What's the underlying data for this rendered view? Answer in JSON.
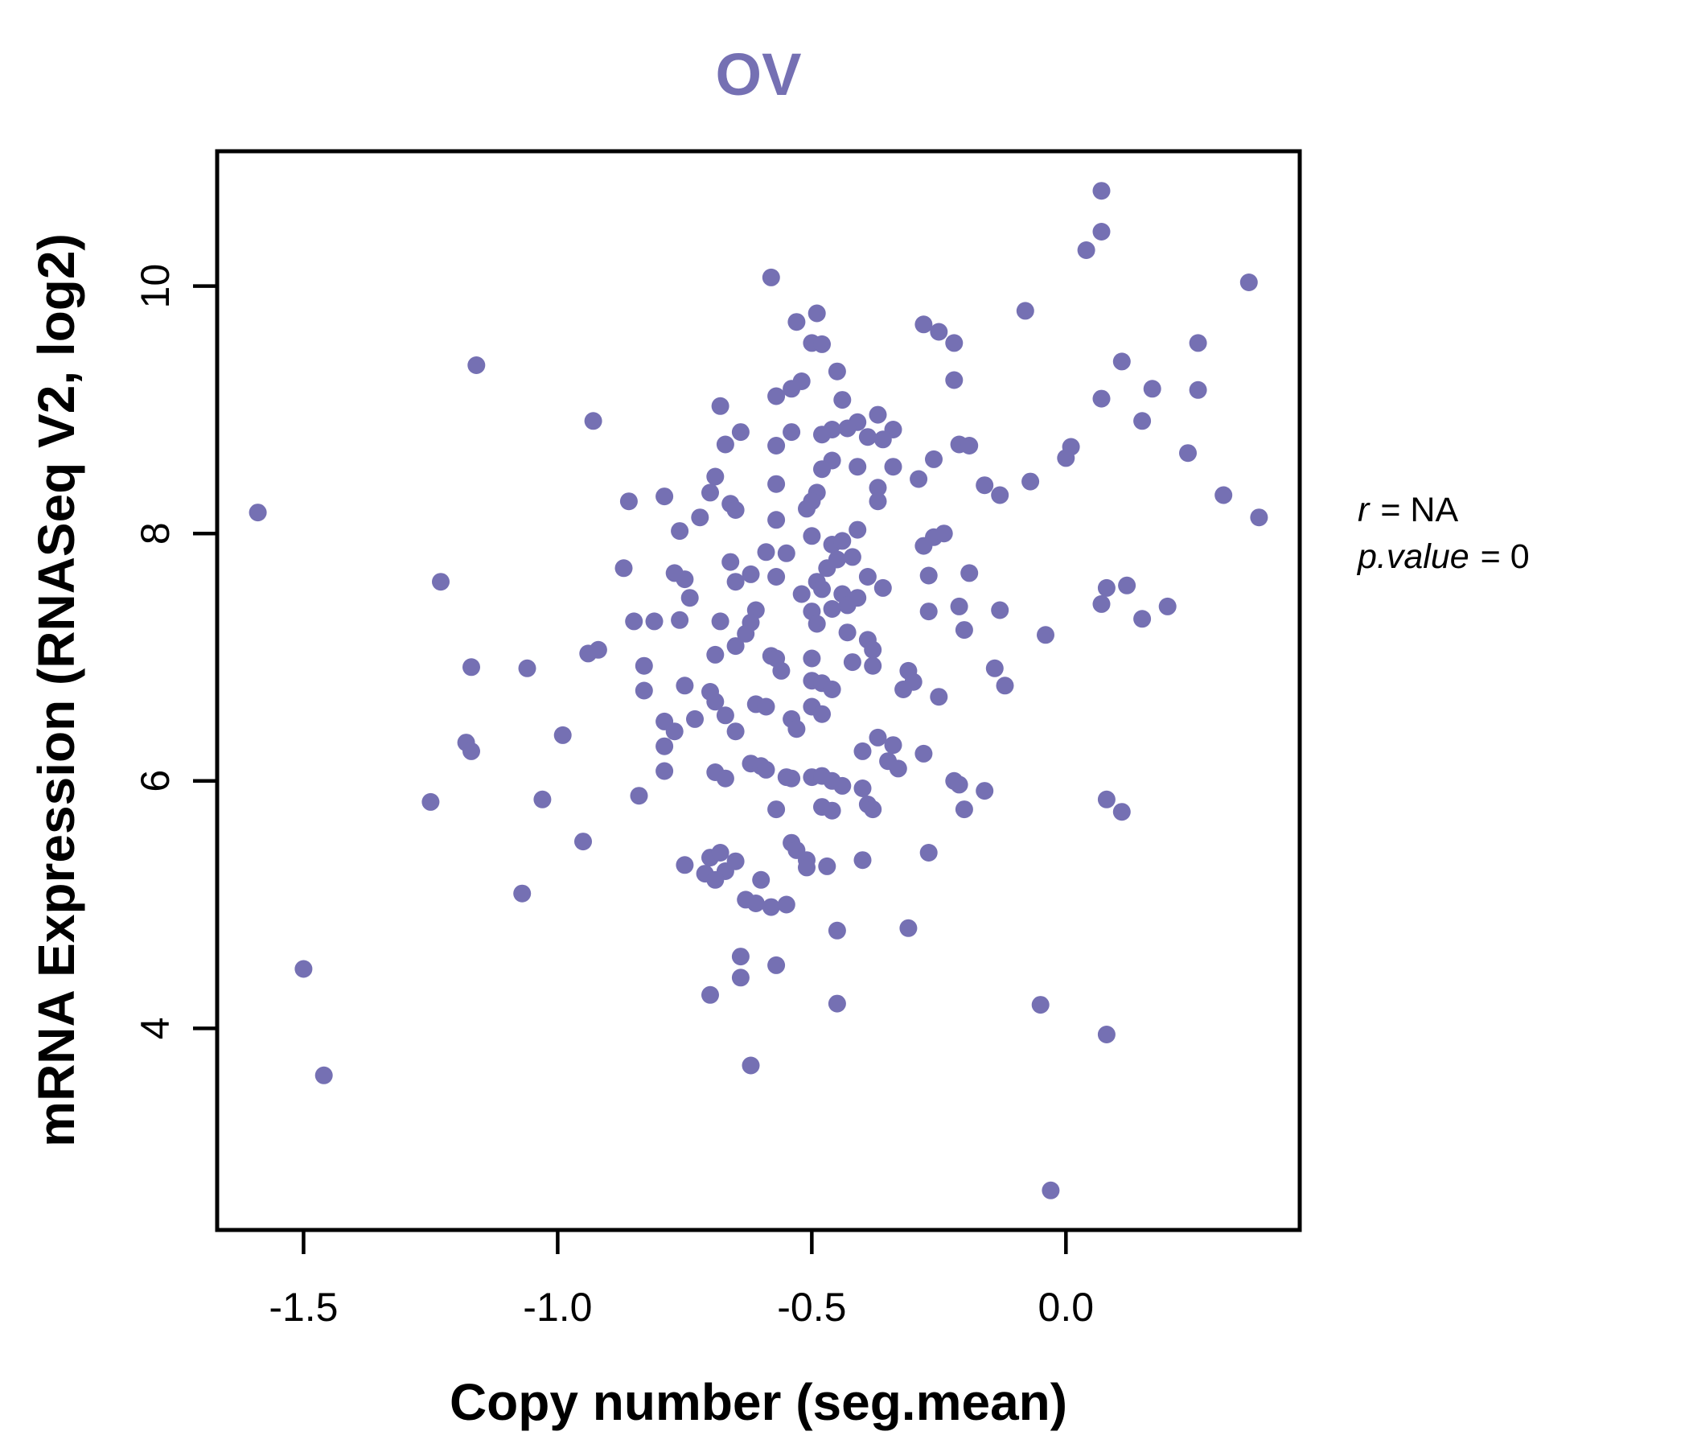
{
  "page": {
    "background": "#ffffff"
  },
  "chart_data": {
    "type": "scatter",
    "title": "OV",
    "title_color": "#7570b3",
    "point_color": "#7570b3",
    "point_radius": 11,
    "xlabel": "Copy number (seg.mean)",
    "ylabel": "mRNA Expression (RNASeq V2, log2)",
    "xlim": [
      -1.67,
      0.46
    ],
    "ylim": [
      2.37,
      11.09
    ],
    "x_ticks": [
      -1.5,
      -1.0,
      -0.5,
      0.0
    ],
    "y_ticks": [
      4,
      6,
      8,
      10
    ],
    "grid": false,
    "legend_position": "none",
    "annotation_lines": [
      {
        "italic": "r",
        "roman": "= NA"
      },
      {
        "italic": "p.value",
        "roman": "= 0"
      }
    ],
    "points": [
      [
        -1.16,
        9.36
      ],
      [
        -1.59,
        8.17
      ],
      [
        -0.58,
        10.07
      ],
      [
        -0.53,
        9.71
      ],
      [
        -0.49,
        9.78
      ],
      [
        -0.5,
        9.54
      ],
      [
        -0.48,
        9.53
      ],
      [
        -0.28,
        9.69
      ],
      [
        -0.25,
        9.63
      ],
      [
        -0.45,
        9.31
      ],
      [
        -0.52,
        9.23
      ],
      [
        -0.54,
        9.17
      ],
      [
        -0.57,
        9.11
      ],
      [
        -0.44,
        9.08
      ],
      [
        -0.68,
        9.03
      ],
      [
        -0.93,
        8.91
      ],
      [
        -0.37,
        8.96
      ],
      [
        -0.34,
        8.84
      ],
      [
        -0.41,
        8.9
      ],
      [
        -0.43,
        8.85
      ],
      [
        -0.46,
        8.84
      ],
      [
        -0.48,
        8.8
      ],
      [
        -0.39,
        8.78
      ],
      [
        -0.36,
        8.76
      ],
      [
        -0.64,
        8.82
      ],
      [
        -0.54,
        8.82
      ],
      [
        -0.67,
        8.72
      ],
      [
        -0.57,
        8.71
      ],
      [
        -0.46,
        8.59
      ],
      [
        -0.48,
        8.52
      ],
      [
        -0.41,
        8.54
      ],
      [
        -0.34,
        8.54
      ],
      [
        -0.26,
        8.6
      ],
      [
        -0.69,
        8.46
      ],
      [
        -0.7,
        8.33
      ],
      [
        -0.57,
        8.4
      ],
      [
        -0.49,
        8.33
      ],
      [
        -0.5,
        8.26
      ],
      [
        -0.37,
        8.37
      ],
      [
        -0.37,
        8.26
      ],
      [
        -0.29,
        8.44
      ],
      [
        -0.86,
        8.26
      ],
      [
        -0.79,
        8.3
      ],
      [
        -0.66,
        8.24
      ],
      [
        -0.65,
        8.19
      ],
      [
        -0.72,
        8.13
      ],
      [
        -0.57,
        8.11
      ],
      [
        -0.51,
        8.2
      ],
      [
        0.07,
        10.77
      ],
      [
        0.07,
        10.44
      ],
      [
        0.04,
        10.29
      ],
      [
        0.36,
        10.03
      ],
      [
        -0.08,
        9.8
      ],
      [
        -0.22,
        9.54
      ],
      [
        -0.22,
        9.24
      ],
      [
        0.26,
        9.54
      ],
      [
        0.11,
        9.39
      ],
      [
        0.17,
        9.17
      ],
      [
        0.26,
        9.16
      ],
      [
        0.07,
        9.09
      ],
      [
        0.15,
        8.91
      ],
      [
        -0.21,
        8.72
      ],
      [
        -0.19,
        8.71
      ],
      [
        0.01,
        8.7
      ],
      [
        0.0,
        8.61
      ],
      [
        0.24,
        8.65
      ],
      [
        -0.16,
        8.39
      ],
      [
        -0.13,
        8.31
      ],
      [
        -0.07,
        8.42
      ],
      [
        0.31,
        8.31
      ],
      [
        0.38,
        8.13
      ],
      [
        -1.23,
        7.61
      ],
      [
        -1.17,
        6.92
      ],
      [
        -1.06,
        6.91
      ],
      [
        -1.18,
        6.31
      ],
      [
        -1.17,
        6.24
      ],
      [
        -0.99,
        6.37
      ],
      [
        -1.25,
        5.83
      ],
      [
        -1.03,
        5.85
      ],
      [
        -0.95,
        5.51
      ],
      [
        -0.76,
        8.02
      ],
      [
        -0.59,
        7.85
      ],
      [
        -0.55,
        7.84
      ],
      [
        -0.5,
        7.98
      ],
      [
        -0.46,
        7.91
      ],
      [
        -0.44,
        7.94
      ],
      [
        -0.42,
        7.81
      ],
      [
        -0.45,
        7.79
      ],
      [
        -0.41,
        8.03
      ],
      [
        -0.28,
        7.9
      ],
      [
        -0.26,
        7.97
      ],
      [
        -0.87,
        7.72
      ],
      [
        -0.66,
        7.77
      ],
      [
        -0.65,
        7.61
      ],
      [
        -0.62,
        7.67
      ],
      [
        -0.57,
        7.65
      ],
      [
        -0.77,
        7.68
      ],
      [
        -0.75,
        7.63
      ],
      [
        -0.49,
        7.61
      ],
      [
        -0.47,
        7.72
      ],
      [
        -0.39,
        7.65
      ],
      [
        -0.36,
        7.56
      ],
      [
        -0.27,
        7.66
      ],
      [
        -0.74,
        7.48
      ],
      [
        -0.52,
        7.51
      ],
      [
        -0.48,
        7.55
      ],
      [
        -0.44,
        7.51
      ],
      [
        -0.41,
        7.48
      ],
      [
        -0.43,
        7.42
      ],
      [
        -0.46,
        7.39
      ],
      [
        -0.5,
        7.37
      ],
      [
        -0.49,
        7.27
      ],
      [
        -0.61,
        7.38
      ],
      [
        -0.62,
        7.28
      ],
      [
        -0.85,
        7.29
      ],
      [
        -0.81,
        7.29
      ],
      [
        -0.76,
        7.3
      ],
      [
        -0.68,
        7.29
      ],
      [
        -0.43,
        7.2
      ],
      [
        -0.39,
        7.14
      ],
      [
        -0.27,
        7.37
      ],
      [
        -0.63,
        7.19
      ],
      [
        -0.65,
        7.09
      ],
      [
        -0.94,
        7.03
      ],
      [
        -0.92,
        7.06
      ],
      [
        -0.69,
        7.02
      ],
      [
        -0.58,
        7.01
      ],
      [
        -0.57,
        6.99
      ],
      [
        -0.56,
        6.89
      ],
      [
        -0.5,
        6.99
      ],
      [
        -0.42,
        6.96
      ],
      [
        -0.38,
        7.06
      ],
      [
        -0.38,
        6.93
      ],
      [
        -0.31,
        6.89
      ],
      [
        -0.3,
        6.8
      ],
      [
        -0.32,
        6.74
      ],
      [
        -0.83,
        6.93
      ],
      [
        -0.83,
        6.73
      ],
      [
        -0.75,
        6.77
      ],
      [
        -0.7,
        6.72
      ],
      [
        -0.69,
        6.64
      ],
      [
        -0.5,
        6.81
      ],
      [
        -0.48,
        6.79
      ],
      [
        -0.46,
        6.74
      ],
      [
        -0.61,
        6.62
      ],
      [
        -0.59,
        6.6
      ],
      [
        -0.67,
        6.53
      ],
      [
        -0.65,
        6.4
      ],
      [
        -0.73,
        6.5
      ],
      [
        -0.79,
        6.48
      ],
      [
        -0.77,
        6.4
      ],
      [
        -0.79,
        6.28
      ],
      [
        -0.54,
        6.5
      ],
      [
        -0.53,
        6.42
      ],
      [
        -0.5,
        6.6
      ],
      [
        -0.48,
        6.54
      ],
      [
        -0.37,
        6.35
      ],
      [
        -0.34,
        6.29
      ],
      [
        -0.4,
        6.24
      ],
      [
        -0.35,
        6.16
      ],
      [
        -0.33,
        6.1
      ],
      [
        -0.28,
        6.22
      ],
      [
        -0.79,
        6.08
      ],
      [
        -0.69,
        6.07
      ],
      [
        -0.67,
        6.02
      ],
      [
        -0.62,
        6.14
      ],
      [
        -0.6,
        6.12
      ],
      [
        -0.59,
        6.09
      ],
      [
        -0.55,
        6.03
      ],
      [
        -0.54,
        6.02
      ],
      [
        -0.5,
        6.03
      ],
      [
        -0.48,
        6.04
      ],
      [
        -0.46,
        6.0
      ],
      [
        -0.44,
        5.96
      ],
      [
        -0.4,
        5.94
      ],
      [
        -0.39,
        5.81
      ],
      [
        -0.38,
        5.77
      ],
      [
        -0.84,
        5.88
      ],
      [
        -0.57,
        5.77
      ],
      [
        -0.48,
        5.79
      ],
      [
        -0.46,
        5.76
      ],
      [
        -0.75,
        5.32
      ],
      [
        -0.7,
        5.38
      ],
      [
        -0.68,
        5.42
      ],
      [
        -0.67,
        5.27
      ],
      [
        -0.71,
        5.25
      ],
      [
        -0.69,
        5.2
      ],
      [
        -0.65,
        5.35
      ],
      [
        -0.6,
        5.2
      ],
      [
        -0.54,
        5.5
      ],
      [
        -0.53,
        5.44
      ],
      [
        -0.51,
        5.36
      ],
      [
        -0.51,
        5.3
      ],
      [
        -0.47,
        5.31
      ],
      [
        -0.4,
        5.36
      ],
      [
        -0.27,
        5.42
      ],
      [
        -0.24,
        8.0
      ],
      [
        -0.19,
        7.68
      ],
      [
        -0.21,
        7.41
      ],
      [
        -0.2,
        7.22
      ],
      [
        -0.13,
        7.38
      ],
      [
        -0.04,
        7.18
      ],
      [
        0.08,
        7.56
      ],
      [
        0.12,
        7.58
      ],
      [
        0.07,
        7.43
      ],
      [
        0.15,
        7.31
      ],
      [
        0.2,
        7.41
      ],
      [
        -0.14,
        6.91
      ],
      [
        -0.12,
        6.77
      ],
      [
        -0.25,
        6.68
      ],
      [
        -0.22,
        6.0
      ],
      [
        -0.21,
        5.97
      ],
      [
        -0.16,
        5.92
      ],
      [
        -0.2,
        5.77
      ],
      [
        0.08,
        5.85
      ],
      [
        0.11,
        5.75
      ],
      [
        -1.07,
        5.09
      ],
      [
        -1.5,
        4.48
      ],
      [
        -1.46,
        3.62
      ],
      [
        -0.63,
        5.04
      ],
      [
        -0.61,
        5.01
      ],
      [
        -0.58,
        4.98
      ],
      [
        -0.55,
        5.0
      ],
      [
        -0.45,
        4.79
      ],
      [
        -0.31,
        4.81
      ],
      [
        -0.64,
        4.58
      ],
      [
        -0.57,
        4.51
      ],
      [
        -0.64,
        4.41
      ],
      [
        -0.7,
        4.27
      ],
      [
        -0.45,
        4.2
      ],
      [
        -0.62,
        3.7
      ],
      [
        -0.05,
        4.19
      ],
      [
        0.08,
        3.95
      ],
      [
        -0.03,
        2.69
      ]
    ]
  }
}
